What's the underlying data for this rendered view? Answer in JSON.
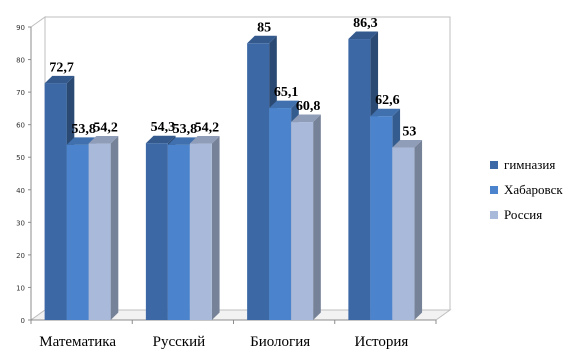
{
  "chart_data": {
    "type": "bar",
    "categories": [
      "Математика",
      "Русский",
      "Биология",
      "История"
    ],
    "series": [
      {
        "name": "гимназия",
        "values": [
          72.7,
          54.3,
          85,
          86.3
        ],
        "labels": [
          "72,7",
          "54,3",
          "85",
          "86,3"
        ],
        "color": "#3c69a6"
      },
      {
        "name": "Хабаровск",
        "values": [
          53.8,
          53.8,
          65.1,
          62.6
        ],
        "labels": [
          "53,8",
          "53,8",
          "65,1",
          "62,6"
        ],
        "color": "#4b84cc"
      },
      {
        "name": "Россия",
        "values": [
          54.2,
          54.2,
          60.8,
          53
        ],
        "labels": [
          "54,2",
          "54,2",
          "60,8",
          "53"
        ],
        "color": "#a9b9d9"
      }
    ],
    "ylim": [
      0,
      90
    ],
    "yticks": [
      "0",
      "10",
      "20",
      "30",
      "40",
      "50",
      "60",
      "70",
      "80",
      "90"
    ],
    "legend_position": "right",
    "grid": false
  }
}
